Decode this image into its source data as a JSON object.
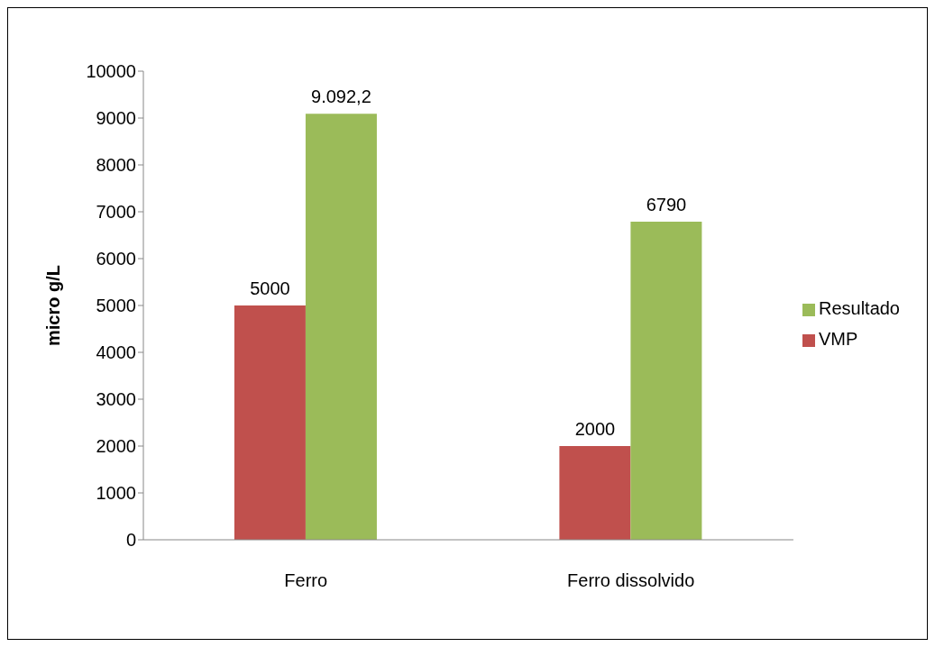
{
  "chart_data": {
    "type": "bar",
    "categories": [
      "Ferro",
      "Ferro dissolvido"
    ],
    "series": [
      {
        "name": "VMP",
        "color": "#c0504d",
        "values": [
          5000,
          2000
        ],
        "value_labels": [
          "5000",
          "2000"
        ]
      },
      {
        "name": "Resultado",
        "color": "#9bbb59",
        "values": [
          9092.2,
          6790
        ],
        "value_labels": [
          "9.092,2",
          "6790"
        ]
      }
    ],
    "ylabel": "micro g/L",
    "ylim": [
      0,
      10000
    ],
    "yticks": [
      0,
      1000,
      2000,
      3000,
      4000,
      5000,
      6000,
      7000,
      8000,
      9000,
      10000
    ],
    "grid": false,
    "legend": "right"
  }
}
